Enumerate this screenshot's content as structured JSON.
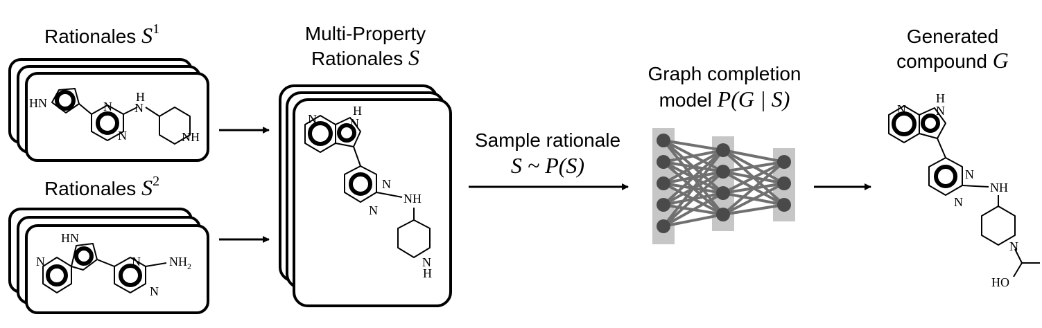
{
  "labels": {
    "rationales_1_word": "Rationales",
    "rationales_1_sym": "S",
    "rationales_1_sup": "1",
    "rationales_2_word": "Rationales",
    "rationales_2_sym": "S",
    "rationales_2_sup": "2",
    "multi_line1": "Multi-Property",
    "multi_line2_word": "Rationales",
    "multi_line2_sym": "S",
    "sample_line1": "Sample rationale",
    "sample_line2": "S ~ P(S)",
    "graph_line1": "Graph completion",
    "graph_line2_word": "model",
    "graph_line2_math": "P(G | S)",
    "generated_line1": "Generated",
    "generated_line2_word": "compound",
    "generated_line2_sym": "G"
  },
  "molecules": {
    "m1": {
      "hn": "HN",
      "n1": "N",
      "n2": "N",
      "h": "H",
      "n3": "N",
      "nh": "NH"
    },
    "m2": {
      "hn": "HN",
      "n1": "N",
      "n2": "N",
      "n3": "N",
      "nh2": "NH",
      "nh2_sub": "2",
      "n4": "N"
    },
    "m3": {
      "n1": "N",
      "h": "H",
      "n2": "N",
      "n3": "N",
      "n4": "N",
      "nh": "NH",
      "n5": "N",
      "h2": "H"
    },
    "m4": {
      "n1": "N",
      "h": "H",
      "n2": "N",
      "n3": "N",
      "n4": "N",
      "nh": "NH",
      "n5": "N",
      "ho": "HO"
    }
  },
  "network": {
    "layers": [
      5,
      4,
      3
    ],
    "node_color": "#4a4a4a",
    "edge_color": "#707070",
    "layer_color": "#c6c6c6"
  }
}
